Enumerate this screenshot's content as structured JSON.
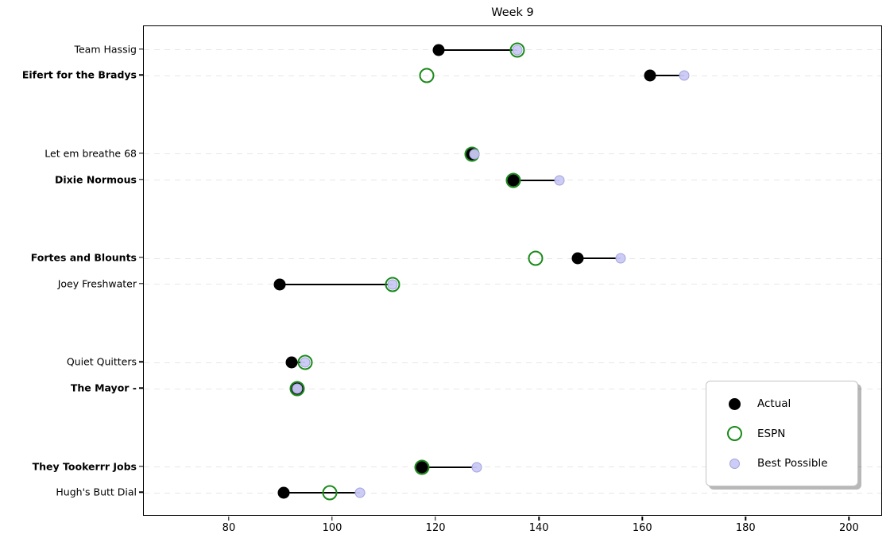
{
  "title": "Week 9",
  "colors": {
    "actual": "#000000",
    "espn_edge": "#1a8a1a",
    "best_fill": "#c9c9f5",
    "best_edge": "#a3a3dc",
    "grid": "#e7e7e7",
    "background": "#ffffff"
  },
  "chart_data": {
    "type": "scatter",
    "title": "Week 9",
    "xlabel": "",
    "ylabel": "",
    "grid": "dashed horizontal per team row",
    "xlim": [
      63.4,
      206.4
    ],
    "x_ticks": [
      80,
      100,
      120,
      140,
      160,
      180,
      200
    ],
    "ylim_top": 17.9,
    "ylim_bottom": -0.9,
    "series_names": [
      "Actual",
      "ESPN",
      "Best Possible"
    ],
    "note_connector": "black line connects Actual to Best Possible for each team",
    "teams": [
      {
        "name": "Team Hassig",
        "bold": false,
        "ypos": 17,
        "actual": 120.5,
        "espn": 135.7,
        "best": 135.7
      },
      {
        "name": "Eifert for the Bradys",
        "bold": true,
        "ypos": 16,
        "actual": 161.3,
        "espn": 118.2,
        "best": 168.0
      },
      {
        "name": "Let em breathe 68",
        "bold": false,
        "ypos": 13,
        "actual": 126.9,
        "espn": 126.9,
        "best": 127.3
      },
      {
        "name": "Dixie Normous",
        "bold": true,
        "ypos": 12,
        "actual": 134.9,
        "espn": 134.9,
        "best": 143.8
      },
      {
        "name": "Fortes and Blounts",
        "bold": true,
        "ypos": 9,
        "actual": 147.4,
        "espn": 139.2,
        "best": 155.7
      },
      {
        "name": "Joey Freshwater",
        "bold": false,
        "ypos": 8,
        "actual": 89.7,
        "espn": 111.6,
        "best": 111.6
      },
      {
        "name": "Quiet Quitters",
        "bold": false,
        "ypos": 5,
        "actual": 92.0,
        "espn": 94.6,
        "best": 94.6
      },
      {
        "name": "The Mayor -",
        "bold": true,
        "ypos": 4,
        "actual": 93.1,
        "espn": 93.1,
        "best": 93.1
      },
      {
        "name": "They Tookerrr Jobs",
        "bold": true,
        "ypos": 1,
        "actual": 117.2,
        "espn": 117.2,
        "best": 127.9
      },
      {
        "name": "Hugh's Butt Dial",
        "bold": false,
        "ypos": 0,
        "actual": 90.5,
        "espn": 99.4,
        "best": 105.3
      }
    ],
    "legend": {
      "position": "lower right",
      "entries": [
        {
          "label": "Actual",
          "marker": "actual"
        },
        {
          "label": "ESPN",
          "marker": "espn"
        },
        {
          "label": "Best Possible",
          "marker": "best"
        }
      ]
    }
  }
}
